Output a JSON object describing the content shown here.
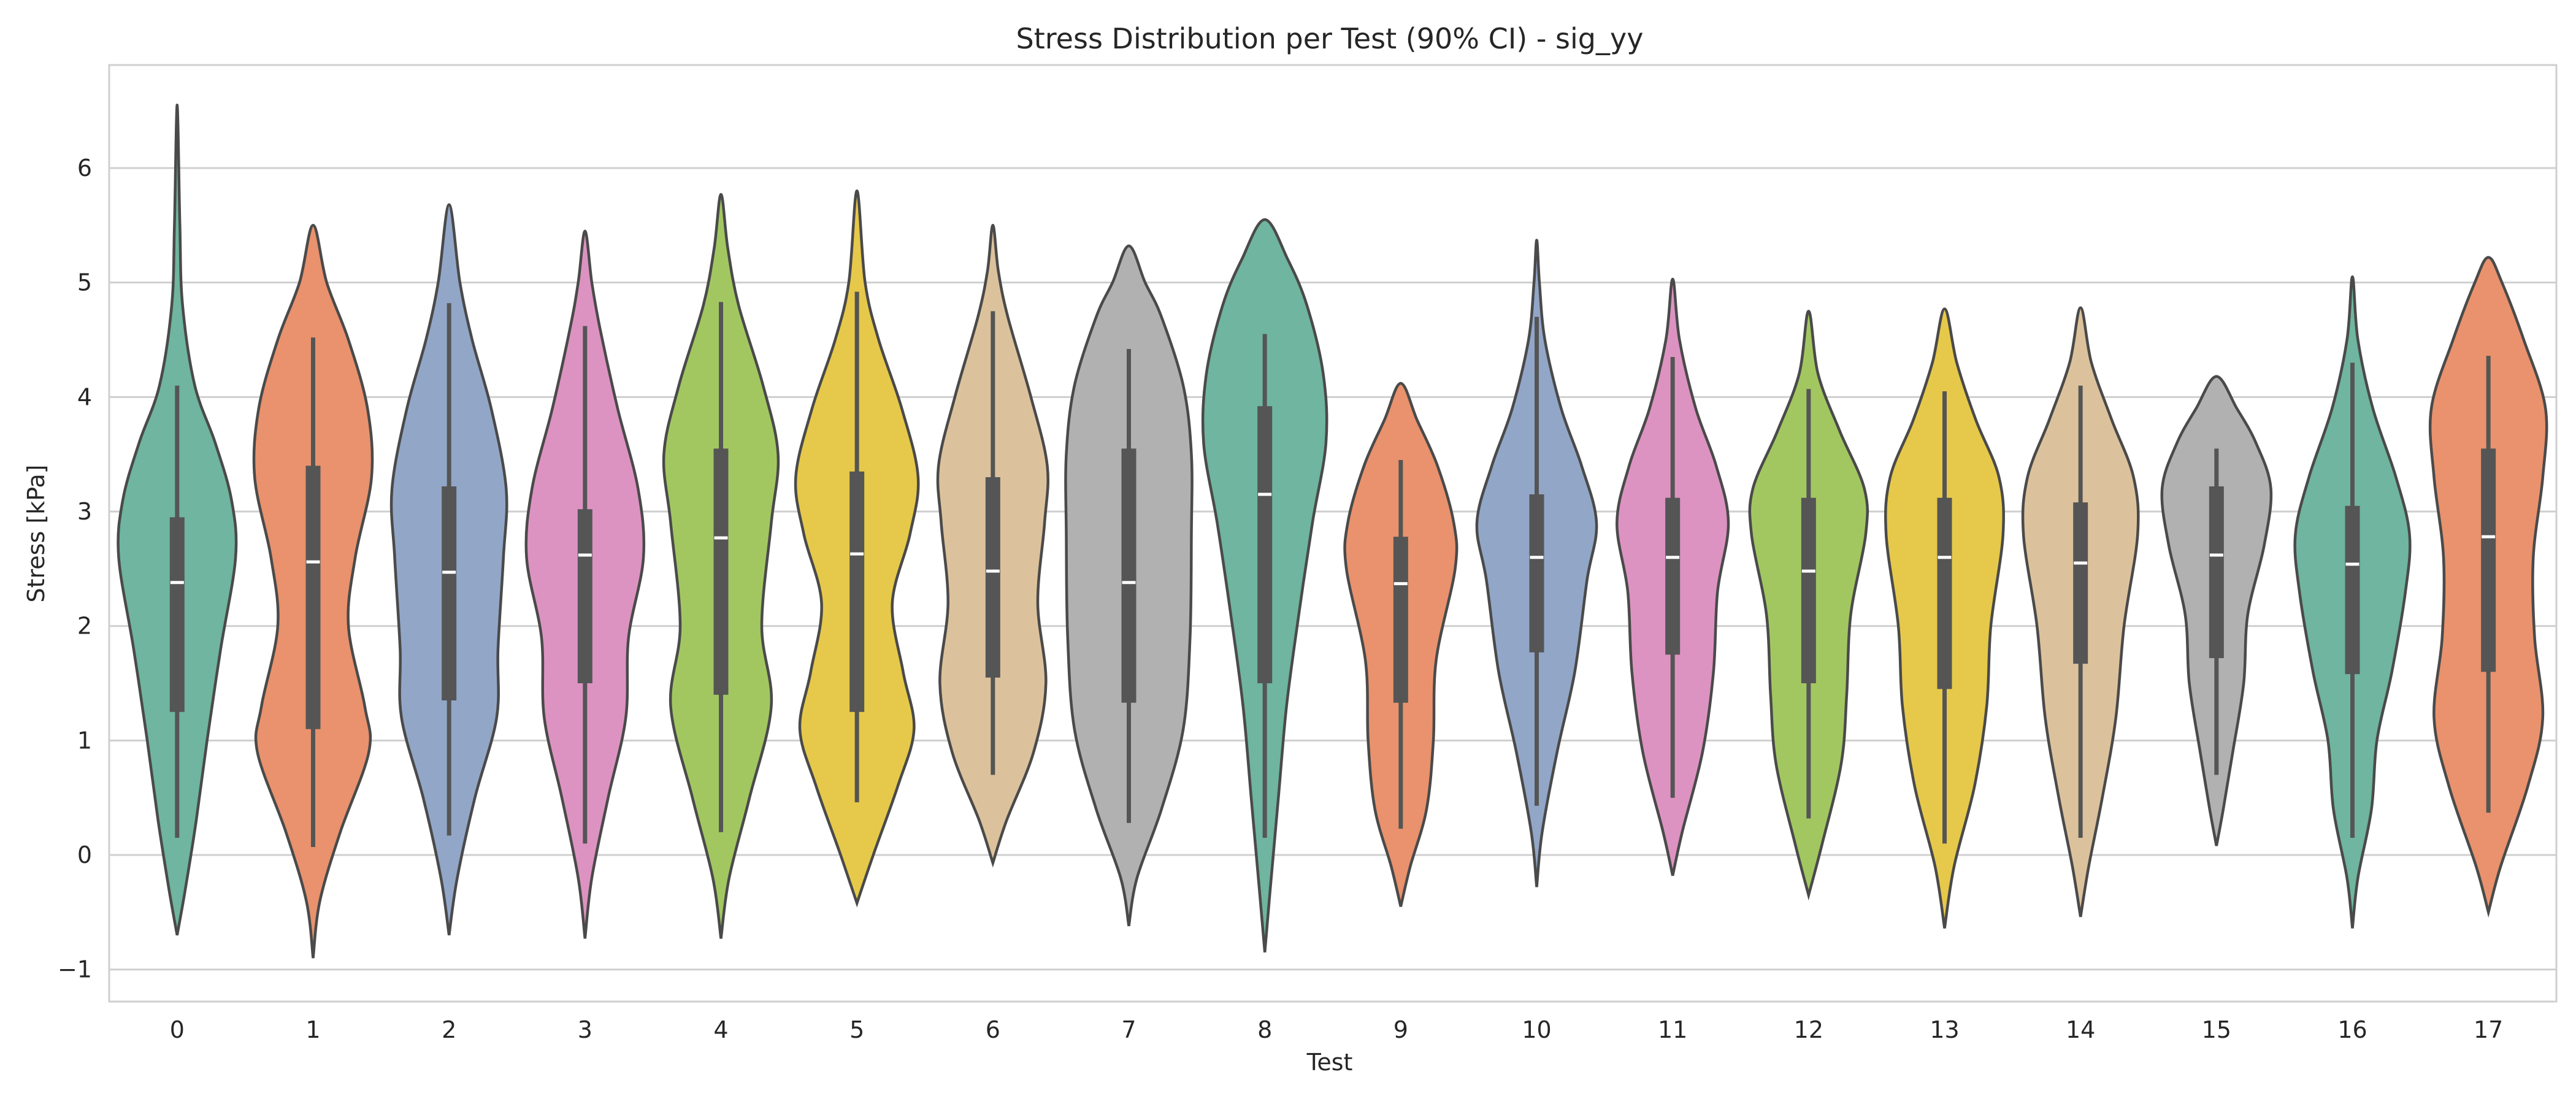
{
  "chart_data": {
    "type": "violin",
    "title": "Stress Distribution per Test (90% CI) - sig_yy",
    "xlabel": "Test",
    "ylabel": "Stress [kPa]",
    "ylim": [
      -1.28,
      6.9
    ],
    "yticks": [
      -1,
      0,
      1,
      2,
      3,
      4,
      5,
      6
    ],
    "ytick_labels": [
      "−1",
      "0",
      "1",
      "2",
      "3",
      "4",
      "5",
      "6"
    ],
    "grid": true,
    "categories": [
      "0",
      "1",
      "2",
      "3",
      "4",
      "5",
      "6",
      "7",
      "8",
      "9",
      "10",
      "11",
      "12",
      "13",
      "14",
      "15",
      "16",
      "17"
    ],
    "colors": [
      "#6fb59f",
      "#e9926d",
      "#92a6c8",
      "#dd93c1",
      "#a2c761",
      "#e6c94a",
      "#dcc29c",
      "#b1b1b1",
      "#6fb59f",
      "#e9926d",
      "#92a6c8",
      "#dd93c1",
      "#a2c761",
      "#e6c94a",
      "#dcc29c",
      "#b1b1b1",
      "#6fb59f",
      "#e9926d"
    ],
    "violins": [
      {
        "test": "0",
        "min": -0.7,
        "max": 6.55,
        "whisker_low": 0.15,
        "whisker_high": 4.1,
        "q1": 1.25,
        "median": 2.38,
        "q3": 2.95,
        "density": [
          [
            -0.7,
            0.0
          ],
          [
            -0.3,
            0.06
          ],
          [
            0.3,
            0.14
          ],
          [
            1.0,
            0.22
          ],
          [
            1.8,
            0.32
          ],
          [
            2.6,
            0.43
          ],
          [
            3.1,
            0.4
          ],
          [
            3.6,
            0.28
          ],
          [
            4.1,
            0.13
          ],
          [
            4.8,
            0.04
          ],
          [
            5.5,
            0.02
          ],
          [
            6.55,
            0.0
          ]
        ]
      },
      {
        "test": "1",
        "min": -0.9,
        "max": 5.5,
        "whisker_low": 0.07,
        "whisker_high": 4.52,
        "q1": 1.1,
        "median": 2.56,
        "q3": 3.4,
        "density": [
          [
            -0.9,
            0.0
          ],
          [
            -0.4,
            0.05
          ],
          [
            0.2,
            0.2
          ],
          [
            0.9,
            0.41
          ],
          [
            1.3,
            0.38
          ],
          [
            2.0,
            0.26
          ],
          [
            2.6,
            0.31
          ],
          [
            3.3,
            0.43
          ],
          [
            3.9,
            0.4
          ],
          [
            4.5,
            0.26
          ],
          [
            5.0,
            0.1
          ],
          [
            5.5,
            0.0
          ]
        ]
      },
      {
        "test": "2",
        "min": -0.7,
        "max": 5.68,
        "whisker_low": 0.17,
        "whisker_high": 4.82,
        "q1": 1.35,
        "median": 2.47,
        "q3": 3.22,
        "density": [
          [
            -0.7,
            0.0
          ],
          [
            -0.2,
            0.06
          ],
          [
            0.5,
            0.19
          ],
          [
            1.2,
            0.35
          ],
          [
            1.8,
            0.36
          ],
          [
            2.6,
            0.4
          ],
          [
            3.2,
            0.42
          ],
          [
            3.9,
            0.31
          ],
          [
            4.5,
            0.17
          ],
          [
            5.0,
            0.08
          ],
          [
            5.68,
            0.0
          ]
        ]
      },
      {
        "test": "3",
        "min": -0.73,
        "max": 5.45,
        "whisker_low": 0.1,
        "whisker_high": 4.62,
        "q1": 1.5,
        "median": 2.62,
        "q3": 3.02,
        "density": [
          [
            -0.73,
            0.0
          ],
          [
            -0.2,
            0.05
          ],
          [
            0.5,
            0.17
          ],
          [
            1.2,
            0.3
          ],
          [
            1.9,
            0.32
          ],
          [
            2.6,
            0.43
          ],
          [
            3.2,
            0.39
          ],
          [
            3.9,
            0.24
          ],
          [
            4.6,
            0.11
          ],
          [
            5.0,
            0.05
          ],
          [
            5.45,
            0.0
          ]
        ]
      },
      {
        "test": "4",
        "min": -0.73,
        "max": 5.77,
        "whisker_low": 0.2,
        "whisker_high": 4.83,
        "q1": 1.4,
        "median": 2.77,
        "q3": 3.55,
        "density": [
          [
            -0.73,
            0.0
          ],
          [
            -0.2,
            0.06
          ],
          [
            0.5,
            0.21
          ],
          [
            1.3,
            0.37
          ],
          [
            2.0,
            0.3
          ],
          [
            2.9,
            0.37
          ],
          [
            3.5,
            0.42
          ],
          [
            4.1,
            0.31
          ],
          [
            4.8,
            0.13
          ],
          [
            5.3,
            0.05
          ],
          [
            5.77,
            0.0
          ]
        ]
      },
      {
        "test": "5",
        "min": -0.42,
        "max": 5.8,
        "whisker_low": 0.46,
        "whisker_high": 4.92,
        "q1": 1.25,
        "median": 2.63,
        "q3": 3.35,
        "density": [
          [
            -0.42,
            0.0
          ],
          [
            0.0,
            0.12
          ],
          [
            0.6,
            0.3
          ],
          [
            1.1,
            0.42
          ],
          [
            1.6,
            0.34
          ],
          [
            2.2,
            0.26
          ],
          [
            2.8,
            0.39
          ],
          [
            3.3,
            0.45
          ],
          [
            3.9,
            0.33
          ],
          [
            4.5,
            0.16
          ],
          [
            5.0,
            0.06
          ],
          [
            5.8,
            0.0
          ]
        ]
      },
      {
        "test": "6",
        "min": -0.07,
        "max": 5.5,
        "whisker_low": 0.7,
        "whisker_high": 4.75,
        "q1": 1.55,
        "median": 2.48,
        "q3": 3.3,
        "density": [
          [
            -0.07,
            0.0
          ],
          [
            0.3,
            0.1
          ],
          [
            0.9,
            0.3
          ],
          [
            1.5,
            0.39
          ],
          [
            2.2,
            0.33
          ],
          [
            2.9,
            0.38
          ],
          [
            3.4,
            0.4
          ],
          [
            4.0,
            0.28
          ],
          [
            4.7,
            0.11
          ],
          [
            5.1,
            0.04
          ],
          [
            5.5,
            0.0
          ]
        ]
      },
      {
        "test": "7",
        "min": -0.62,
        "max": 5.32,
        "whisker_low": 0.28,
        "whisker_high": 4.42,
        "q1": 1.33,
        "median": 2.38,
        "q3": 3.55,
        "density": [
          [
            -0.62,
            0.0
          ],
          [
            -0.2,
            0.06
          ],
          [
            0.4,
            0.24
          ],
          [
            1.1,
            0.4
          ],
          [
            1.9,
            0.45
          ],
          [
            2.8,
            0.46
          ],
          [
            3.5,
            0.46
          ],
          [
            4.1,
            0.4
          ],
          [
            4.7,
            0.24
          ],
          [
            5.0,
            0.12
          ],
          [
            5.32,
            0.0
          ]
        ]
      },
      {
        "test": "8",
        "min": -0.85,
        "max": 5.55,
        "whisker_low": 0.15,
        "whisker_high": 4.55,
        "q1": 1.5,
        "median": 3.15,
        "q3": 3.92,
        "density": [
          [
            -0.85,
            0.0
          ],
          [
            -0.3,
            0.04
          ],
          [
            0.5,
            0.1
          ],
          [
            1.3,
            0.16
          ],
          [
            2.1,
            0.25
          ],
          [
            2.9,
            0.35
          ],
          [
            3.6,
            0.45
          ],
          [
            4.2,
            0.43
          ],
          [
            4.8,
            0.31
          ],
          [
            5.2,
            0.17
          ],
          [
            5.55,
            0.0
          ]
        ]
      },
      {
        "test": "9",
        "min": -0.45,
        "max": 4.12,
        "whisker_low": 0.23,
        "whisker_high": 3.45,
        "q1": 1.33,
        "median": 2.37,
        "q3": 2.78,
        "density": [
          [
            -0.45,
            0.0
          ],
          [
            -0.1,
            0.07
          ],
          [
            0.4,
            0.19
          ],
          [
            1.0,
            0.24
          ],
          [
            1.7,
            0.26
          ],
          [
            2.5,
            0.4
          ],
          [
            2.9,
            0.39
          ],
          [
            3.4,
            0.27
          ],
          [
            3.8,
            0.12
          ],
          [
            4.12,
            0.0
          ]
        ]
      },
      {
        "test": "10",
        "min": -0.28,
        "max": 5.37,
        "whisker_low": 0.43,
        "whisker_high": 4.7,
        "q1": 1.77,
        "median": 2.6,
        "q3": 3.15,
        "density": [
          [
            -0.28,
            0.0
          ],
          [
            0.2,
            0.04
          ],
          [
            0.9,
            0.15
          ],
          [
            1.6,
            0.28
          ],
          [
            2.4,
            0.37
          ],
          [
            2.9,
            0.44
          ],
          [
            3.4,
            0.33
          ],
          [
            3.9,
            0.18
          ],
          [
            4.5,
            0.06
          ],
          [
            5.0,
            0.02
          ],
          [
            5.37,
            0.0
          ]
        ]
      },
      {
        "test": "11",
        "min": -0.18,
        "max": 5.03,
        "whisker_low": 0.5,
        "whisker_high": 4.35,
        "q1": 1.75,
        "median": 2.6,
        "q3": 3.12,
        "density": [
          [
            -0.18,
            0.0
          ],
          [
            0.2,
            0.07
          ],
          [
            0.9,
            0.22
          ],
          [
            1.6,
            0.3
          ],
          [
            2.3,
            0.33
          ],
          [
            2.9,
            0.41
          ],
          [
            3.4,
            0.32
          ],
          [
            3.9,
            0.17
          ],
          [
            4.5,
            0.05
          ],
          [
            5.03,
            0.0
          ]
        ]
      },
      {
        "test": "12",
        "min": -0.35,
        "max": 4.75,
        "whisker_low": 0.32,
        "whisker_high": 4.07,
        "q1": 1.5,
        "median": 2.48,
        "q3": 3.12,
        "density": [
          [
            -0.35,
            0.0
          ],
          [
            0.1,
            0.1
          ],
          [
            0.8,
            0.24
          ],
          [
            1.4,
            0.28
          ],
          [
            2.1,
            0.31
          ],
          [
            2.8,
            0.42
          ],
          [
            3.2,
            0.41
          ],
          [
            3.7,
            0.23
          ],
          [
            4.2,
            0.07
          ],
          [
            4.75,
            0.0
          ]
        ]
      },
      {
        "test": "13",
        "min": -0.64,
        "max": 4.77,
        "whisker_low": 0.1,
        "whisker_high": 4.05,
        "q1": 1.45,
        "median": 2.6,
        "q3": 3.12,
        "density": [
          [
            -0.64,
            0.0
          ],
          [
            -0.1,
            0.07
          ],
          [
            0.6,
            0.22
          ],
          [
            1.3,
            0.31
          ],
          [
            2.0,
            0.34
          ],
          [
            2.8,
            0.43
          ],
          [
            3.3,
            0.4
          ],
          [
            3.8,
            0.23
          ],
          [
            4.3,
            0.09
          ],
          [
            4.77,
            0.0
          ]
        ]
      },
      {
        "test": "14",
        "min": -0.54,
        "max": 4.78,
        "whisker_low": 0.15,
        "whisker_high": 4.1,
        "q1": 1.67,
        "median": 2.55,
        "q3": 3.08,
        "density": [
          [
            -0.54,
            0.0
          ],
          [
            -0.1,
            0.06
          ],
          [
            0.5,
            0.16
          ],
          [
            1.2,
            0.26
          ],
          [
            2.0,
            0.32
          ],
          [
            2.8,
            0.42
          ],
          [
            3.3,
            0.39
          ],
          [
            3.8,
            0.23
          ],
          [
            4.3,
            0.08
          ],
          [
            4.78,
            0.0
          ]
        ]
      },
      {
        "test": "15",
        "min": 0.08,
        "max": 4.18,
        "whisker_low": 0.7,
        "whisker_high": 3.55,
        "q1": 1.72,
        "median": 2.62,
        "q3": 3.22,
        "density": [
          [
            0.08,
            0.0
          ],
          [
            0.4,
            0.05
          ],
          [
            0.9,
            0.12
          ],
          [
            1.5,
            0.2
          ],
          [
            2.1,
            0.23
          ],
          [
            2.7,
            0.35
          ],
          [
            3.2,
            0.4
          ],
          [
            3.6,
            0.29
          ],
          [
            3.9,
            0.15
          ],
          [
            4.18,
            0.0
          ]
        ]
      },
      {
        "test": "16",
        "min": -0.64,
        "max": 5.05,
        "whisker_low": 0.15,
        "whisker_high": 4.3,
        "q1": 1.58,
        "median": 2.54,
        "q3": 3.05,
        "density": [
          [
            -0.64,
            0.0
          ],
          [
            -0.2,
            0.04
          ],
          [
            0.4,
            0.14
          ],
          [
            1.0,
            0.18
          ],
          [
            1.6,
            0.29
          ],
          [
            2.3,
            0.39
          ],
          [
            2.8,
            0.42
          ],
          [
            3.3,
            0.32
          ],
          [
            3.9,
            0.15
          ],
          [
            4.5,
            0.04
          ],
          [
            5.05,
            0.0
          ]
        ]
      },
      {
        "test": "17",
        "min": -0.5,
        "max": 5.22,
        "whisker_low": 0.37,
        "whisker_high": 4.36,
        "q1": 1.6,
        "median": 2.78,
        "q3": 3.55,
        "density": [
          [
            -0.5,
            0.0
          ],
          [
            -0.1,
            0.09
          ],
          [
            0.6,
            0.29
          ],
          [
            1.2,
            0.4
          ],
          [
            1.9,
            0.34
          ],
          [
            2.6,
            0.33
          ],
          [
            3.3,
            0.4
          ],
          [
            3.9,
            0.42
          ],
          [
            4.5,
            0.26
          ],
          [
            5.0,
            0.1
          ],
          [
            5.22,
            0.0
          ]
        ]
      }
    ]
  }
}
